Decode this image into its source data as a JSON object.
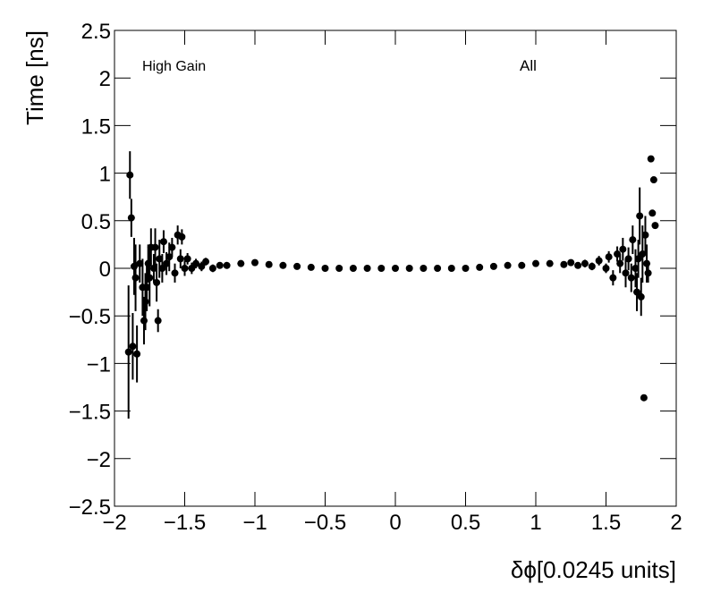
{
  "chart_data": {
    "type": "scatter",
    "xlabel": "δϕ[0.0245 units]",
    "ylabel": "Time [ns]",
    "annotations": [
      "High Gain",
      "All"
    ],
    "color": "#000000",
    "x": [
      -1.9,
      -1.89,
      -1.88,
      -1.87,
      -1.86,
      -1.85,
      -1.84,
      -1.82,
      -1.8,
      -1.79,
      -1.78,
      -1.77,
      -1.76,
      -1.75,
      -1.74,
      -1.72,
      -1.71,
      -1.7,
      -1.69,
      -1.68,
      -1.66,
      -1.65,
      -1.63,
      -1.61,
      -1.59,
      -1.57,
      -1.55,
      -1.53,
      -1.52,
      -1.5,
      -1.48,
      -1.45,
      -1.42,
      -1.38,
      -1.35,
      -1.3,
      -1.25,
      -1.2,
      -1.1,
      -1.0,
      -0.9,
      -0.8,
      -0.7,
      -0.6,
      -0.5,
      -0.4,
      -0.3,
      -0.2,
      -0.1,
      0.0,
      0.1,
      0.2,
      0.3,
      0.4,
      0.5,
      0.6,
      0.7,
      0.8,
      0.9,
      1.0,
      1.1,
      1.2,
      1.25,
      1.3,
      1.35,
      1.4,
      1.45,
      1.5,
      1.52,
      1.55,
      1.58,
      1.6,
      1.62,
      1.64,
      1.66,
      1.68,
      1.69,
      1.71,
      1.72,
      1.73,
      1.74,
      1.75,
      1.76,
      1.77,
      1.78,
      1.79,
      1.8,
      1.82,
      1.83,
      1.84,
      1.85
    ],
    "values": [
      -0.88,
      0.98,
      0.53,
      -0.82,
      0.02,
      -0.1,
      -0.9,
      0.05,
      -0.2,
      -0.55,
      -0.35,
      -0.2,
      0.05,
      -0.1,
      0.22,
      0.0,
      0.22,
      -0.15,
      -0.55,
      0.1,
      0.0,
      0.28,
      0.05,
      0.12,
      0.22,
      -0.05,
      0.35,
      0.1,
      0.33,
      0.0,
      0.1,
      0.0,
      0.05,
      0.02,
      0.07,
      0.0,
      0.03,
      0.03,
      0.05,
      0.06,
      0.04,
      0.03,
      0.02,
      0.01,
      0.0,
      0.0,
      0.0,
      0.0,
      0.0,
      0.0,
      0.0,
      0.0,
      0.0,
      0.0,
      0.0,
      0.01,
      0.02,
      0.03,
      0.03,
      0.05,
      0.05,
      0.04,
      0.06,
      0.03,
      0.05,
      0.02,
      0.08,
      0.0,
      0.12,
      -0.1,
      0.15,
      0.05,
      0.2,
      -0.05,
      0.1,
      -0.1,
      0.3,
      0.0,
      -0.25,
      0.1,
      0.55,
      -0.3,
      0.15,
      -1.36,
      0.35,
      0.05,
      -0.05,
      1.15,
      0.58,
      0.93,
      0.45
    ],
    "errors": [
      0.7,
      0.25,
      0.2,
      0.35,
      0.3,
      0.35,
      0.3,
      0.2,
      0.3,
      0.25,
      0.3,
      0.25,
      0.2,
      0.3,
      0.2,
      0.15,
      0.2,
      0.2,
      0.12,
      0.2,
      0.15,
      0.12,
      0.12,
      0.15,
      0.1,
      0.1,
      0.1,
      0.1,
      0.08,
      0.08,
      0.06,
      0.06,
      0.05,
      0.05,
      0.04,
      0.04,
      0.03,
      0.03,
      0.02,
      0.02,
      0.02,
      0.01,
      0.01,
      0.01,
      0.01,
      0.01,
      0.01,
      0.01,
      0.01,
      0.01,
      0.01,
      0.01,
      0.01,
      0.01,
      0.01,
      0.01,
      0.01,
      0.01,
      0.02,
      0.02,
      0.02,
      0.02,
      0.03,
      0.03,
      0.04,
      0.04,
      0.05,
      0.05,
      0.06,
      0.08,
      0.08,
      0.1,
      0.12,
      0.15,
      0.12,
      0.15,
      0.15,
      0.2,
      0.2,
      0.2,
      0.3,
      0.2,
      0.3,
      0.0,
      0.2,
      0.2,
      0.1,
      0.0,
      0.0,
      0.0,
      0.0
    ],
    "xlim": [
      -2,
      2
    ],
    "ylim": [
      -2.5,
      2.5
    ],
    "xticks": [
      {
        "value": -2,
        "label": "−2"
      },
      {
        "value": -1.5,
        "label": "−1.5"
      },
      {
        "value": -1,
        "label": "−1"
      },
      {
        "value": -0.5,
        "label": "−0.5"
      },
      0,
      0.5,
      1,
      1.5,
      2
    ],
    "yticks": [
      {
        "value": -2.5,
        "label": "−2.5"
      },
      {
        "value": -2,
        "label": "−2"
      },
      {
        "value": -1.5,
        "label": "−1.5"
      },
      {
        "value": -1,
        "label": "−1"
      },
      {
        "value": -0.5,
        "label": "−0.5"
      },
      0,
      0.5,
      1,
      1.5,
      2,
      2.5
    ]
  }
}
